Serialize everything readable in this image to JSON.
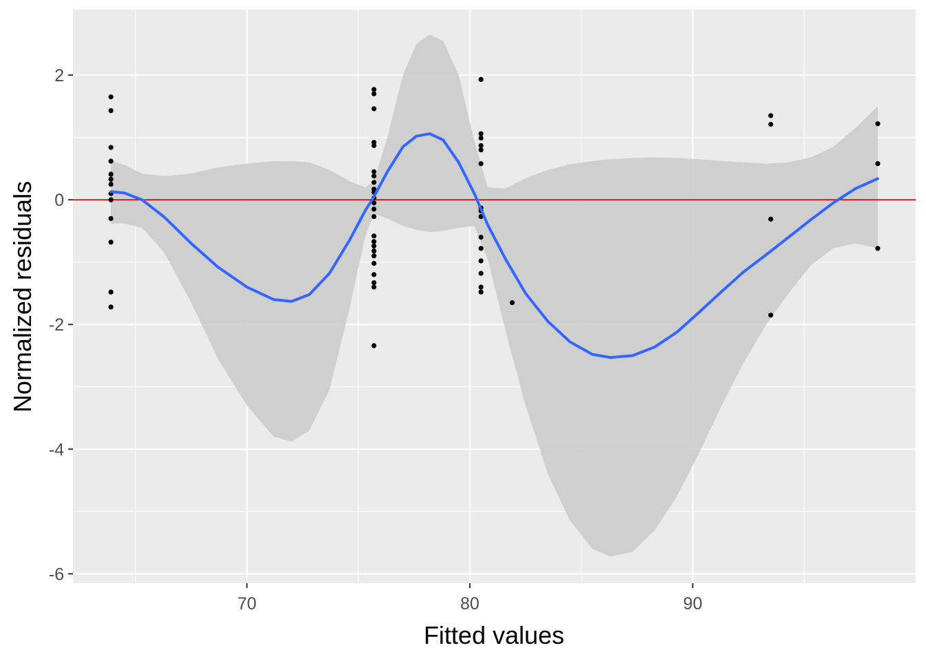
{
  "chart_data": {
    "type": "scatter",
    "xlabel": "Fitted values",
    "ylabel": "Normalized residuals",
    "xlim": [
      62.2,
      100.0
    ],
    "ylim": [
      -6.15,
      3.05
    ],
    "x_major_ticks": [
      70,
      80,
      90
    ],
    "x_minor_ticks": [
      65,
      75,
      85,
      95
    ],
    "y_major_ticks": [
      -6,
      -4,
      -2,
      0,
      2
    ],
    "y_minor_ticks": [
      -5,
      -3,
      -1,
      1
    ],
    "x_tick_labels": [
      "70",
      "80",
      "90"
    ],
    "y_tick_labels": [
      "-6",
      "-4",
      "-2",
      "0",
      "2"
    ],
    "grid": true,
    "colors": {
      "panel_background": "#ebebeb",
      "grid": "#ffffff",
      "points": "#000000",
      "smooth_line": "#3366ff",
      "confidence_band": "#cccccc",
      "reference_line": "#cc0000"
    },
    "reference_line_y": 0,
    "points": [
      {
        "x": 63.9,
        "y": 1.65
      },
      {
        "x": 63.9,
        "y": 1.43
      },
      {
        "x": 63.9,
        "y": 0.84
      },
      {
        "x": 63.9,
        "y": 0.62
      },
      {
        "x": 63.9,
        "y": 0.41
      },
      {
        "x": 63.9,
        "y": 0.33
      },
      {
        "x": 63.9,
        "y": 0.25
      },
      {
        "x": 63.9,
        "y": 0.1
      },
      {
        "x": 63.9,
        "y": 0.0
      },
      {
        "x": 63.9,
        "y": -0.3
      },
      {
        "x": 63.9,
        "y": -0.68
      },
      {
        "x": 63.9,
        "y": -1.48
      },
      {
        "x": 63.9,
        "y": -1.72
      },
      {
        "x": 75.7,
        "y": 1.77
      },
      {
        "x": 75.7,
        "y": 1.7
      },
      {
        "x": 75.7,
        "y": 1.46
      },
      {
        "x": 75.7,
        "y": 0.92
      },
      {
        "x": 75.7,
        "y": 0.87
      },
      {
        "x": 75.7,
        "y": 0.45
      },
      {
        "x": 75.7,
        "y": 0.38
      },
      {
        "x": 75.7,
        "y": 0.28
      },
      {
        "x": 75.7,
        "y": 0.17
      },
      {
        "x": 75.7,
        "y": 0.12
      },
      {
        "x": 75.7,
        "y": 0.03
      },
      {
        "x": 75.7,
        "y": -0.05
      },
      {
        "x": 75.7,
        "y": -0.15
      },
      {
        "x": 75.7,
        "y": -0.27
      },
      {
        "x": 75.7,
        "y": -0.58
      },
      {
        "x": 75.7,
        "y": -0.67
      },
      {
        "x": 75.7,
        "y": -0.74
      },
      {
        "x": 75.7,
        "y": -0.82
      },
      {
        "x": 75.7,
        "y": -0.9
      },
      {
        "x": 75.7,
        "y": -1.02
      },
      {
        "x": 75.7,
        "y": -1.2
      },
      {
        "x": 75.7,
        "y": -1.33
      },
      {
        "x": 75.7,
        "y": -1.4
      },
      {
        "x": 75.7,
        "y": -2.34
      },
      {
        "x": 80.5,
        "y": 1.93
      },
      {
        "x": 80.5,
        "y": 1.06
      },
      {
        "x": 80.5,
        "y": 0.99
      },
      {
        "x": 80.5,
        "y": 0.87
      },
      {
        "x": 80.5,
        "y": 0.8
      },
      {
        "x": 80.5,
        "y": 0.58
      },
      {
        "x": 80.5,
        "y": -0.13
      },
      {
        "x": 80.5,
        "y": -0.18
      },
      {
        "x": 80.5,
        "y": -0.27
      },
      {
        "x": 80.5,
        "y": -0.6
      },
      {
        "x": 80.5,
        "y": -0.78
      },
      {
        "x": 80.5,
        "y": -0.98
      },
      {
        "x": 80.5,
        "y": -1.18
      },
      {
        "x": 80.5,
        "y": -1.4
      },
      {
        "x": 80.5,
        "y": -1.48
      },
      {
        "x": 81.9,
        "y": -1.65
      },
      {
        "x": 93.5,
        "y": 1.35
      },
      {
        "x": 93.5,
        "y": 1.21
      },
      {
        "x": 93.5,
        "y": -0.31
      },
      {
        "x": 93.5,
        "y": -1.85
      },
      {
        "x": 98.3,
        "y": 1.22
      },
      {
        "x": 98.3,
        "y": 0.58
      },
      {
        "x": 98.3,
        "y": -0.78
      }
    ],
    "smooth_line": [
      {
        "x": 63.9,
        "y": 0.13
      },
      {
        "x": 64.5,
        "y": 0.11
      },
      {
        "x": 65.3,
        "y": 0.0
      },
      {
        "x": 66.3,
        "y": -0.28
      },
      {
        "x": 67.5,
        "y": -0.7
      },
      {
        "x": 68.7,
        "y": -1.08
      },
      {
        "x": 70.0,
        "y": -1.4
      },
      {
        "x": 71.2,
        "y": -1.6
      },
      {
        "x": 72.0,
        "y": -1.63
      },
      {
        "x": 72.8,
        "y": -1.52
      },
      {
        "x": 73.7,
        "y": -1.18
      },
      {
        "x": 74.6,
        "y": -0.65
      },
      {
        "x": 75.3,
        "y": -0.18
      },
      {
        "x": 75.7,
        "y": 0.05
      },
      {
        "x": 76.3,
        "y": 0.45
      },
      {
        "x": 77.0,
        "y": 0.85
      },
      {
        "x": 77.6,
        "y": 1.02
      },
      {
        "x": 78.2,
        "y": 1.06
      },
      {
        "x": 78.8,
        "y": 0.96
      },
      {
        "x": 79.5,
        "y": 0.6
      },
      {
        "x": 80.2,
        "y": 0.1
      },
      {
        "x": 80.8,
        "y": -0.4
      },
      {
        "x": 81.6,
        "y": -0.95
      },
      {
        "x": 82.5,
        "y": -1.5
      },
      {
        "x": 83.5,
        "y": -1.95
      },
      {
        "x": 84.5,
        "y": -2.28
      },
      {
        "x": 85.5,
        "y": -2.48
      },
      {
        "x": 86.3,
        "y": -2.53
      },
      {
        "x": 87.3,
        "y": -2.5
      },
      {
        "x": 88.3,
        "y": -2.36
      },
      {
        "x": 89.3,
        "y": -2.12
      },
      {
        "x": 90.3,
        "y": -1.8
      },
      {
        "x": 91.3,
        "y": -1.47
      },
      {
        "x": 92.3,
        "y": -1.15
      },
      {
        "x": 93.3,
        "y": -0.88
      },
      {
        "x": 94.3,
        "y": -0.6
      },
      {
        "x": 95.3,
        "y": -0.32
      },
      {
        "x": 96.3,
        "y": -0.05
      },
      {
        "x": 97.3,
        "y": 0.18
      },
      {
        "x": 98.3,
        "y": 0.34
      }
    ],
    "confidence_band_upper": [
      {
        "x": 63.9,
        "y": 0.63
      },
      {
        "x": 64.5,
        "y": 0.56
      },
      {
        "x": 65.3,
        "y": 0.42
      },
      {
        "x": 66.3,
        "y": 0.38
      },
      {
        "x": 67.5,
        "y": 0.42
      },
      {
        "x": 68.7,
        "y": 0.52
      },
      {
        "x": 70.0,
        "y": 0.58
      },
      {
        "x": 71.2,
        "y": 0.62
      },
      {
        "x": 72.0,
        "y": 0.62
      },
      {
        "x": 72.8,
        "y": 0.6
      },
      {
        "x": 73.7,
        "y": 0.48
      },
      {
        "x": 74.6,
        "y": 0.3
      },
      {
        "x": 75.3,
        "y": 0.2
      },
      {
        "x": 75.7,
        "y": 0.3
      },
      {
        "x": 76.3,
        "y": 1.0
      },
      {
        "x": 77.0,
        "y": 2.0
      },
      {
        "x": 77.6,
        "y": 2.5
      },
      {
        "x": 78.2,
        "y": 2.65
      },
      {
        "x": 78.8,
        "y": 2.55
      },
      {
        "x": 79.5,
        "y": 2.0
      },
      {
        "x": 80.2,
        "y": 0.95
      },
      {
        "x": 80.8,
        "y": 0.2
      },
      {
        "x": 81.6,
        "y": 0.18
      },
      {
        "x": 82.5,
        "y": 0.35
      },
      {
        "x": 83.5,
        "y": 0.48
      },
      {
        "x": 84.5,
        "y": 0.57
      },
      {
        "x": 85.5,
        "y": 0.62
      },
      {
        "x": 86.3,
        "y": 0.65
      },
      {
        "x": 87.3,
        "y": 0.67
      },
      {
        "x": 88.3,
        "y": 0.68
      },
      {
        "x": 89.3,
        "y": 0.67
      },
      {
        "x": 90.3,
        "y": 0.65
      },
      {
        "x": 91.3,
        "y": 0.62
      },
      {
        "x": 92.3,
        "y": 0.6
      },
      {
        "x": 93.3,
        "y": 0.58
      },
      {
        "x": 94.3,
        "y": 0.6
      },
      {
        "x": 95.3,
        "y": 0.68
      },
      {
        "x": 96.3,
        "y": 0.85
      },
      {
        "x": 97.3,
        "y": 1.15
      },
      {
        "x": 98.3,
        "y": 1.5
      }
    ],
    "confidence_band_lower": [
      {
        "x": 63.9,
        "y": -0.38
      },
      {
        "x": 64.5,
        "y": -0.38
      },
      {
        "x": 65.3,
        "y": -0.45
      },
      {
        "x": 66.3,
        "y": -0.85
      },
      {
        "x": 67.5,
        "y": -1.65
      },
      {
        "x": 68.7,
        "y": -2.55
      },
      {
        "x": 70.0,
        "y": -3.3
      },
      {
        "x": 71.2,
        "y": -3.8
      },
      {
        "x": 72.0,
        "y": -3.88
      },
      {
        "x": 72.8,
        "y": -3.7
      },
      {
        "x": 73.7,
        "y": -3.05
      },
      {
        "x": 74.6,
        "y": -1.75
      },
      {
        "x": 75.3,
        "y": -0.6
      },
      {
        "x": 75.7,
        "y": -0.22
      },
      {
        "x": 76.3,
        "y": -0.3
      },
      {
        "x": 77.0,
        "y": -0.42
      },
      {
        "x": 77.6,
        "y": -0.48
      },
      {
        "x": 78.2,
        "y": -0.52
      },
      {
        "x": 78.8,
        "y": -0.5
      },
      {
        "x": 79.5,
        "y": -0.45
      },
      {
        "x": 80.2,
        "y": -0.42
      },
      {
        "x": 80.8,
        "y": -0.95
      },
      {
        "x": 81.6,
        "y": -2.1
      },
      {
        "x": 82.5,
        "y": -3.3
      },
      {
        "x": 83.5,
        "y": -4.4
      },
      {
        "x": 84.5,
        "y": -5.15
      },
      {
        "x": 85.5,
        "y": -5.6
      },
      {
        "x": 86.3,
        "y": -5.72
      },
      {
        "x": 87.3,
        "y": -5.65
      },
      {
        "x": 88.3,
        "y": -5.3
      },
      {
        "x": 89.3,
        "y": -4.75
      },
      {
        "x": 90.3,
        "y": -4.05
      },
      {
        "x": 91.3,
        "y": -3.3
      },
      {
        "x": 92.3,
        "y": -2.6
      },
      {
        "x": 93.3,
        "y": -2.0
      },
      {
        "x": 94.3,
        "y": -1.5
      },
      {
        "x": 95.3,
        "y": -1.05
      },
      {
        "x": 96.3,
        "y": -0.78
      },
      {
        "x": 97.3,
        "y": -0.7
      },
      {
        "x": 98.3,
        "y": -0.78
      }
    ]
  }
}
